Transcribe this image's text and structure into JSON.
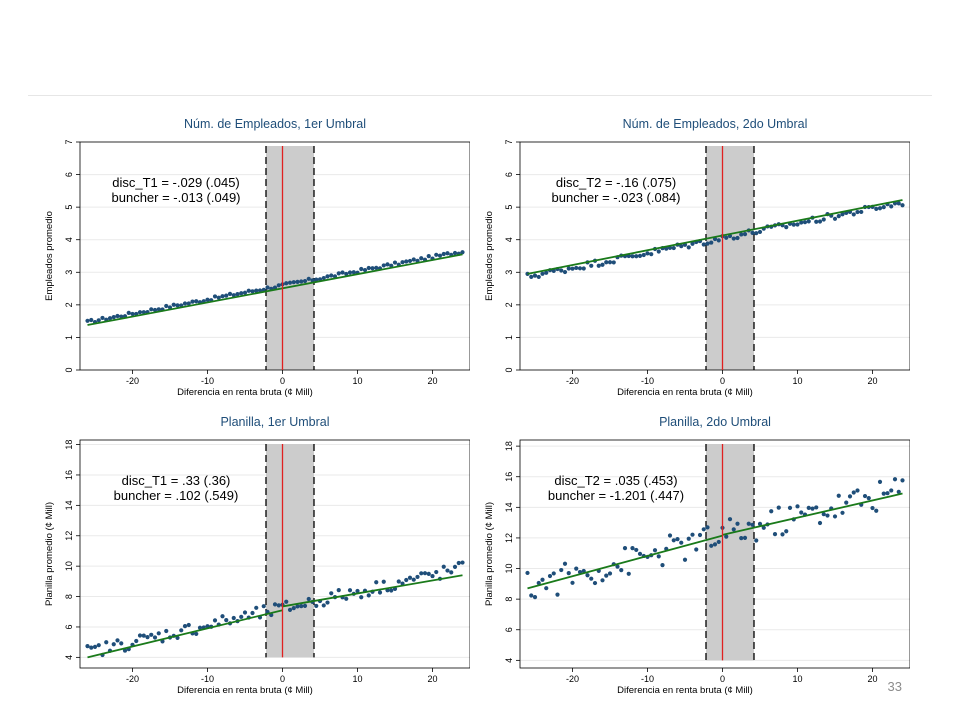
{
  "page_number": "33",
  "colors": {
    "points": "#1f4e79",
    "fit": "#1a7a1a",
    "threshold": "#e02020",
    "band": "#cccccc",
    "title": "#1f4e79"
  },
  "chart_data": [
    {
      "type": "scatter",
      "title": "Núm. de Empleados, 1er Umbral",
      "xlabel": "Diferencia en renta bruta (¢ Mill)",
      "ylabel": "Empleados promedio",
      "xlim": [
        -27,
        25
      ],
      "ylim": [
        0,
        7
      ],
      "xticks": [
        -20,
        -10,
        0,
        10,
        20
      ],
      "yticks": [
        0,
        1,
        2,
        3,
        4,
        5,
        6,
        7
      ],
      "band": [
        -2.2,
        4.2
      ],
      "threshold": 0,
      "annotation": [
        "disc_T1 = -.029 (.045)",
        "buncher = -.013 (.049)"
      ],
      "fit": [
        {
          "x": [
            -26,
            24
          ],
          "y": [
            1.38,
            3.55
          ]
        }
      ],
      "points": {
        "x0": -26,
        "dx": 0.5,
        "n": 101,
        "intercept": 2.6,
        "slope": 0.0434,
        "curv": 0,
        "noise": 0.05
      }
    },
    {
      "type": "scatter",
      "title": "Núm. de Empleados, 2do Umbral",
      "xlabel": "Diferencia en renta bruta (¢ Mill)",
      "ylabel": "Empleados promedio",
      "xlim": [
        -27,
        25
      ],
      "ylim": [
        0,
        7
      ],
      "xticks": [
        -20,
        -10,
        0,
        10,
        20
      ],
      "yticks": [
        0,
        1,
        2,
        3,
        4,
        5,
        6,
        7
      ],
      "band": [
        -2.2,
        4.2
      ],
      "threshold": 0,
      "annotation": [
        "disc_T2 = -.16 (.075)",
        "buncher = -.023 (.084)"
      ],
      "fit": [
        {
          "x": [
            -26,
            24
          ],
          "y": [
            2.95,
            5.22
          ]
        }
      ],
      "points": {
        "x0": -26,
        "dx": 0.5,
        "n": 101,
        "intercept": 4.05,
        "slope": 0.0455,
        "curv": 0,
        "noise": 0.1
      }
    },
    {
      "type": "scatter",
      "title": "Planilla, 1er Umbral",
      "xlabel": "Diferencia en renta bruta (¢ Mill)",
      "ylabel": "Planilla promedio (¢ Mill)",
      "xlim": [
        -27,
        25
      ],
      "ylim": [
        3.3,
        18.3
      ],
      "xticks": [
        -20,
        -10,
        0,
        10,
        20
      ],
      "yticks": [
        4,
        6,
        8,
        10,
        12,
        14,
        16,
        18
      ],
      "band": [
        -2.2,
        4.2
      ],
      "threshold": 0,
      "annotation": [
        "disc_T1 = .33 (.36)",
        "buncher = .102 (.549)"
      ],
      "fit": [
        {
          "x": [
            -26,
            0
          ],
          "y": [
            4.0,
            7.1
          ]
        },
        {
          "x": [
            0,
            24
          ],
          "y": [
            7.35,
            9.4
          ]
        }
      ],
      "points": {
        "x0": -26,
        "dx": 0.5,
        "n": 101,
        "intercept": 7.2,
        "slope": 0.11,
        "curv": 0,
        "noise": 0.45
      }
    },
    {
      "type": "scatter",
      "title": "Planilla, 2do Umbral",
      "xlabel": "Diferencia en renta bruta (¢ Mill)",
      "ylabel": "Planilla promedio (¢ Mill)",
      "xlim": [
        -27,
        25
      ],
      "ylim": [
        3.5,
        18.4
      ],
      "xticks": [
        -20,
        -10,
        0,
        10,
        20
      ],
      "yticks": [
        4,
        6,
        8,
        10,
        12,
        14,
        16,
        18
      ],
      "band": [
        -2.2,
        4.2
      ],
      "threshold": 0,
      "annotation": [
        "disc_T2 = .035 (.453)",
        "buncher = -1.201 (.447)"
      ],
      "fit": [
        {
          "x": [
            -26,
            0
          ],
          "y": [
            8.7,
            12.15
          ]
        },
        {
          "x": [
            0,
            24
          ],
          "y": [
            12.2,
            14.9
          ]
        }
      ],
      "points": {
        "x0": -26,
        "dx": 0.5,
        "n": 101,
        "intercept": 12.1,
        "slope": 0.128,
        "curv": 0,
        "noise": 1.0
      }
    }
  ]
}
